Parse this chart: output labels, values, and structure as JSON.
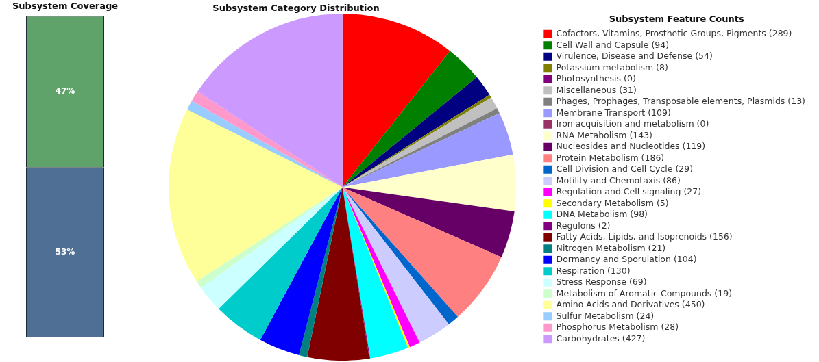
{
  "chart_data": [
    {
      "type": "bar",
      "title": "Subsystem Coverage",
      "categories": [
        null
      ],
      "stacked": true,
      "legend": false,
      "series": [
        {
          "color": "#4f7094",
          "values": [
            53
          ],
          "value_labels": [
            "53%"
          ]
        },
        {
          "color": "#5fa26a",
          "values": [
            47
          ],
          "value_labels": [
            "47%"
          ]
        }
      ]
    },
    {
      "type": "pie",
      "title": "Subsystem Category Distribution",
      "legend_title": "Subsystem Feature Counts",
      "legend": "right",
      "categories": [
        "Cofactors, Vitamins, Prosthetic Groups, Pigments (289)",
        "Cell Wall and Capsule (94)",
        "Virulence, Disease and Defense (54)",
        "Potassium metabolism (8)",
        "Photosynthesis (0)",
        "Miscellaneous (31)",
        "Phages, Prophages, Transposable elements, Plasmids (13)",
        "Membrane Transport (109)",
        "Iron acquisition and metabolism (0)",
        "RNA Metabolism (143)",
        "Nucleosides and Nucleotides (119)",
        "Protein Metabolism (186)",
        "Cell Division and Cell Cycle (29)",
        "Motility and Chemotaxis (86)",
        "Regulation and Cell signaling (27)",
        "Secondary Metabolism (5)",
        "DNA Metabolism (98)",
        "Regulons (2)",
        "Fatty Acids, Lipids, and Isoprenoids (156)",
        "Nitrogen Metabolism (21)",
        "Dormancy and Sporulation (104)",
        "Respiration (130)",
        "Stress Response (69)",
        "Metabolism of Aromatic Compounds (19)",
        "Amino Acids and Derivatives (450)",
        "Sulfur Metabolism (24)",
        "Phosphorus Metabolism (28)",
        "Carbohydrates (427)"
      ],
      "values": [
        289,
        94,
        54,
        8,
        0,
        31,
        13,
        109,
        0,
        143,
        119,
        186,
        29,
        86,
        27,
        5,
        98,
        2,
        156,
        21,
        104,
        130,
        69,
        19,
        450,
        24,
        28,
        427
      ],
      "colors": [
        "#ff0000",
        "#007f00",
        "#000080",
        "#808000",
        "#800080",
        "#c0c0c0",
        "#808080",
        "#9999ff",
        "#993366",
        "#ffffcc",
        "#660066",
        "#ff8080",
        "#0066cc",
        "#ccccff",
        "#ff00ff",
        "#ffff00",
        "#00ffff",
        "#800080",
        "#800000",
        "#008080",
        "#0000ff",
        "#00cccc",
        "#ccffff",
        "#ccffcc",
        "#ffff99",
        "#99ccff",
        "#ff99cc",
        "#cc99ff"
      ]
    }
  ]
}
